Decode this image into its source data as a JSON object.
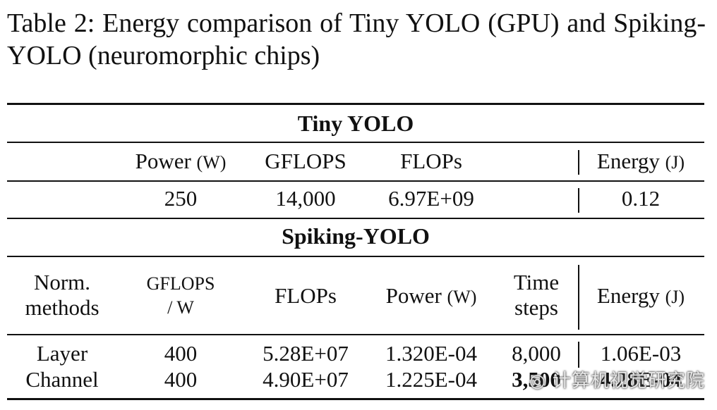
{
  "caption": "Table 2: Energy comparison of Tiny YOLO (GPU) and Spiking-YOLO (neuromorphic chips)",
  "tiny_yolo": {
    "title": "Tiny YOLO",
    "headers": {
      "power_main": "Power",
      "power_unit": "(W)",
      "gflops": "GFLOPS",
      "flops": "FLOPs",
      "energy_main": "Energy",
      "energy_unit": "(J)"
    },
    "row": {
      "power": "250",
      "gflops": "14,000",
      "flops": "6.97E+09",
      "energy": "0.12"
    }
  },
  "spiking_yolo": {
    "title": "Spiking-YOLO",
    "headers": {
      "norm_line1": "Norm.",
      "norm_line2": "methods",
      "gflops_line1": "GFLOPS",
      "gflops_line2": "/ W",
      "flops": "FLOPs",
      "power_main": "Power",
      "power_unit": "(W)",
      "time_line1": "Time",
      "time_line2": "steps",
      "energy_main": "Energy",
      "energy_unit": "(J)"
    },
    "rows": [
      {
        "method": "Layer",
        "gflops_w": "400",
        "flops": "5.28E+07",
        "power": "1.320E-04",
        "time_steps": "8,000",
        "energy": "1.06E-03"
      },
      {
        "method": "Channel",
        "gflops_w": "400",
        "flops": "4.90E+07",
        "power": "1.225E-04",
        "time_steps": "3,500",
        "energy": "4.28E-04"
      }
    ]
  },
  "watermark": "计算机视觉研究院"
}
